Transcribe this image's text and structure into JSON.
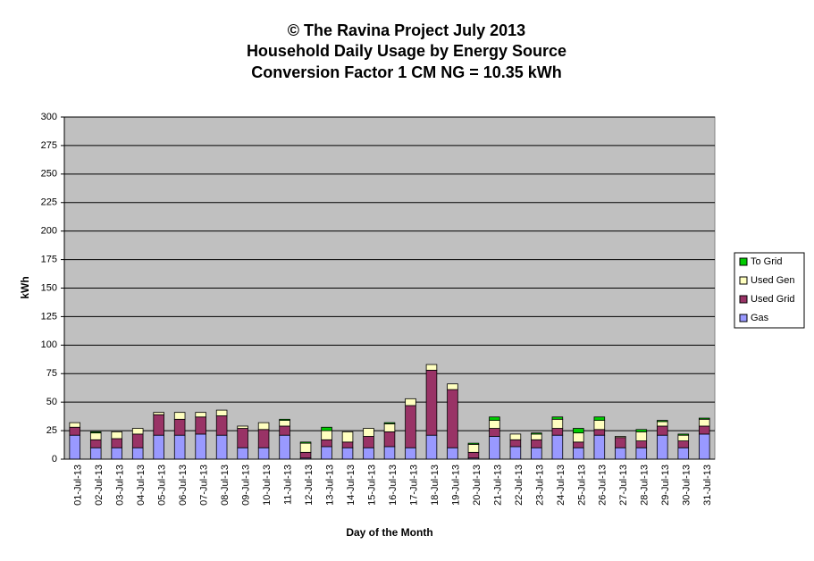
{
  "chart_data": {
    "type": "stacked-bar",
    "title": [
      "© The Ravina Project July 2013",
      "Household Daily Usage by Energy Source",
      "Conversion Factor 1 CM NG = 10.35 kWh"
    ],
    "x_label": "Day of the Month",
    "y_label": "kWh",
    "categories": [
      "01-Jul-13",
      "02-Jul-13",
      "03-Jul-13",
      "04-Jul-13",
      "05-Jul-13",
      "06-Jul-13",
      "07-Jul-13",
      "08-Jul-13",
      "09-Jul-13",
      "10-Jul-13",
      "11-Jul-13",
      "12-Jul-13",
      "13-Jul-13",
      "14-Jul-13",
      "15-Jul-13",
      "16-Jul-13",
      "17-Jul-13",
      "18-Jul-13",
      "19-Jul-13",
      "20-Jul-13",
      "21-Jul-13",
      "22-Jul-13",
      "23-Jul-13",
      "24-Jul-13",
      "25-Jul-13",
      "26-Jul-13",
      "27-Jul-13",
      "28-Jul-13",
      "29-Jul-13",
      "30-Jul-13",
      "31-Jul-13"
    ],
    "series": [
      {
        "name": "Gas",
        "color": "#9999ff",
        "values": [
          21,
          10,
          10,
          10,
          21,
          21,
          22,
          21,
          10,
          10,
          21,
          1,
          11,
          10,
          10,
          11,
          10,
          21,
          10,
          1,
          20,
          11,
          10,
          21,
          10,
          21,
          10,
          10,
          21,
          10,
          22
        ]
      },
      {
        "name": "Used Grid",
        "color": "#993366",
        "values": [
          7,
          7,
          8,
          12,
          18,
          14,
          15,
          17,
          17,
          16,
          8,
          5,
          6,
          5,
          10,
          13,
          37,
          57,
          51,
          5,
          7,
          6,
          7,
          6,
          5,
          5,
          9,
          6,
          8,
          6,
          7
        ]
      },
      {
        "name": "Used Gen",
        "color": "#ffffc0",
        "values": [
          4,
          6,
          6,
          5,
          2,
          6,
          4,
          5,
          2,
          6,
          5,
          8,
          8,
          9,
          7,
          7,
          6,
          5,
          5,
          7,
          7,
          5,
          5,
          8,
          8,
          8,
          1,
          8,
          4,
          5,
          6
        ]
      },
      {
        "name": "To Grid",
        "color": "#00cc00",
        "values": [
          0,
          1,
          0,
          0,
          0,
          0,
          0,
          0,
          0,
          0,
          1,
          1,
          3,
          0,
          0,
          1,
          0,
          0,
          0,
          1,
          3,
          0,
          1,
          2,
          4,
          3,
          0,
          2,
          1,
          1,
          1
        ]
      }
    ],
    "ylim": [
      0,
      300
    ],
    "yticks": [
      0,
      25,
      50,
      75,
      100,
      125,
      150,
      175,
      200,
      225,
      250,
      275,
      300
    ],
    "grid": true,
    "legend": "right"
  }
}
